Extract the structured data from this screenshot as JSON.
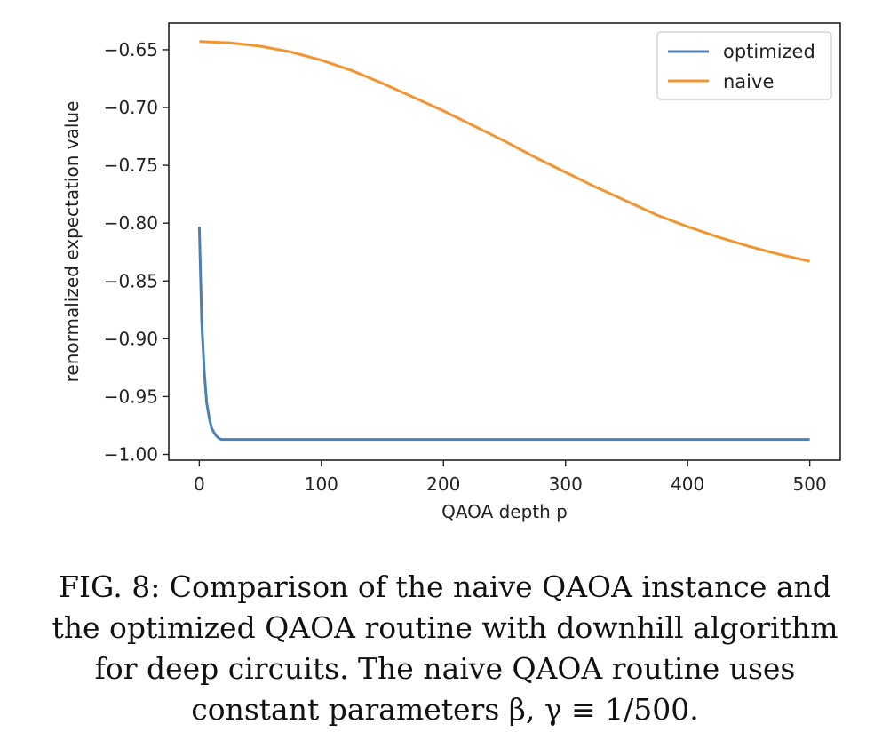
{
  "chart_data": {
    "type": "line",
    "xlabel": "QAOA depth p",
    "ylabel": "renormalized expectation value",
    "xlim": [
      -25,
      525
    ],
    "ylim": [
      -1.005,
      -0.627
    ],
    "xticks": [
      0,
      100,
      200,
      300,
      400,
      500
    ],
    "yticks": [
      -1.0,
      -0.95,
      -0.9,
      -0.85,
      -0.8,
      -0.75,
      -0.7,
      -0.65
    ],
    "grid": false,
    "legend_position": "top-right",
    "series": [
      {
        "name": "optimized",
        "color": "#4c7fb4",
        "x": [
          0,
          2,
          4,
          6,
          8,
          10,
          12,
          14,
          16,
          18,
          20,
          50,
          100,
          200,
          300,
          400,
          500
        ],
        "y": [
          -0.803,
          -0.885,
          -0.928,
          -0.955,
          -0.968,
          -0.977,
          -0.981,
          -0.984,
          -0.986,
          -0.987,
          -0.987,
          -0.987,
          -0.987,
          -0.987,
          -0.987,
          -0.987,
          -0.987
        ]
      },
      {
        "name": "naive",
        "color": "#f19432",
        "x": [
          0,
          25,
          50,
          75,
          100,
          125,
          150,
          175,
          200,
          225,
          250,
          275,
          300,
          325,
          350,
          375,
          400,
          425,
          450,
          475,
          500
        ],
        "y": [
          -0.643,
          -0.644,
          -0.647,
          -0.652,
          -0.659,
          -0.668,
          -0.679,
          -0.691,
          -0.703,
          -0.716,
          -0.729,
          -0.743,
          -0.756,
          -0.769,
          -0.781,
          -0.793,
          -0.803,
          -0.812,
          -0.82,
          -0.827,
          -0.833
        ]
      }
    ]
  },
  "caption": {
    "lines": [
      "FIG. 8: Comparison of the naive QAOA instance and",
      "the optimized QAOA routine with downhill algorithm",
      "for deep circuits. The naive QAOA routine uses",
      "constant parameters β, γ ≡ 1/500."
    ]
  }
}
